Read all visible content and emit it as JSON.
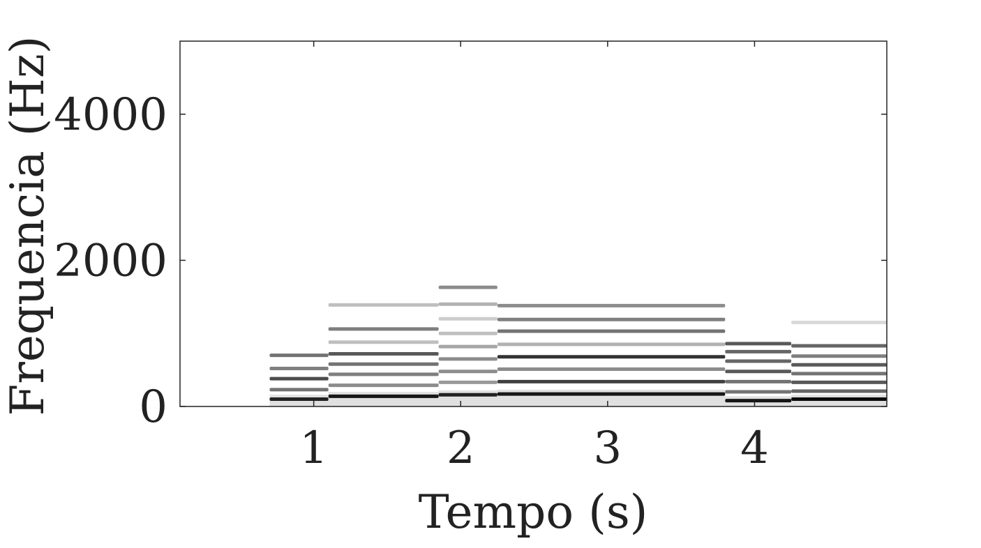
{
  "chart_data": {
    "type": "heatmap",
    "title": "",
    "xlabel": "Tempo (s)",
    "ylabel": "Frequencia (Hz)",
    "xlim": [
      0.09,
      4.9
    ],
    "ylim": [
      0,
      5000
    ],
    "xticks": [
      1,
      2,
      3,
      4
    ],
    "yticks": [
      0,
      2000,
      4000
    ],
    "grid": false,
    "colormap": "gray-reversed",
    "colors": {
      "axis": "#222222",
      "band": "#000000",
      "background": "#ffffff"
    },
    "segments": [
      {
        "t_start": 0.7,
        "t_end": 1.1,
        "fundamental_hz": 100,
        "harmonics_hz": [
          100,
          230,
          380,
          520,
          700
        ],
        "intensity": [
          0.85,
          0.55,
          0.7,
          0.5,
          0.55
        ]
      },
      {
        "t_start": 1.1,
        "t_end": 1.85,
        "fundamental_hz": 140,
        "harmonics_hz": [
          140,
          290,
          440,
          580,
          720,
          880,
          1060,
          1390
        ],
        "intensity": [
          0.9,
          0.45,
          0.5,
          0.55,
          0.65,
          0.25,
          0.5,
          0.25
        ]
      },
      {
        "t_start": 1.85,
        "t_end": 2.25,
        "fundamental_hz": 160,
        "harmonics_hz": [
          160,
          330,
          480,
          650,
          820,
          1000,
          1200,
          1400,
          1630
        ],
        "intensity": [
          0.85,
          0.4,
          0.45,
          0.45,
          0.35,
          0.25,
          0.2,
          0.3,
          0.45
        ]
      },
      {
        "t_start": 2.25,
        "t_end": 3.8,
        "fundamental_hz": 170,
        "harmonics_hz": [
          170,
          340,
          510,
          680,
          850,
          1030,
          1190,
          1380
        ],
        "intensity": [
          0.9,
          0.75,
          0.45,
          0.8,
          0.3,
          0.55,
          0.5,
          0.45
        ]
      },
      {
        "t_start": 3.8,
        "t_end": 4.25,
        "fundamental_hz": 80,
        "harmonics_hz": [
          80,
          200,
          340,
          480,
          620,
          750,
          860
        ],
        "intensity": [
          0.9,
          0.55,
          0.55,
          0.65,
          0.6,
          0.6,
          0.65
        ]
      },
      {
        "t_start": 4.25,
        "t_end": 4.9,
        "fundamental_hz": 100,
        "harmonics_hz": [
          100,
          210,
          330,
          450,
          570,
          690,
          830,
          1150
        ],
        "intensity": [
          0.95,
          0.6,
          0.65,
          0.55,
          0.65,
          0.5,
          0.6,
          0.15
        ]
      }
    ]
  }
}
